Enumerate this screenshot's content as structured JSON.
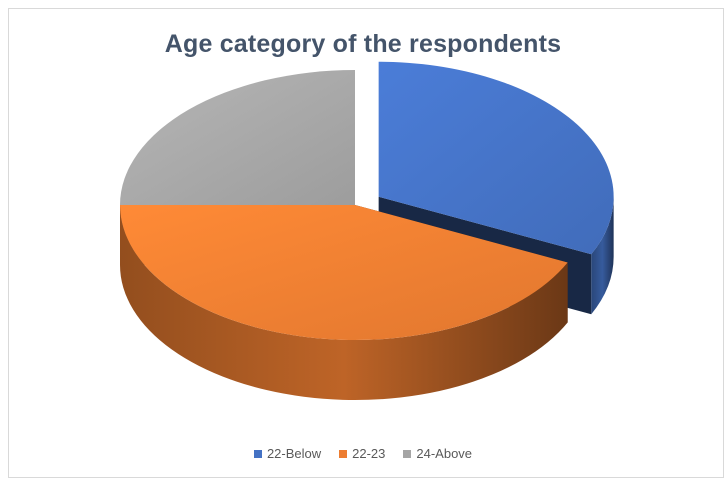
{
  "chart_data": {
    "type": "pie",
    "title": "Age category of the respondents",
    "categories": [
      "22-Below",
      "22-23",
      "24-Above"
    ],
    "values": [
      32,
      43,
      25
    ],
    "colors": [
      "#4472c4",
      "#ed7d31",
      "#a5a5a5"
    ],
    "exploded": [
      "22-Below"
    ],
    "style": "3d",
    "legend_position": "bottom"
  }
}
